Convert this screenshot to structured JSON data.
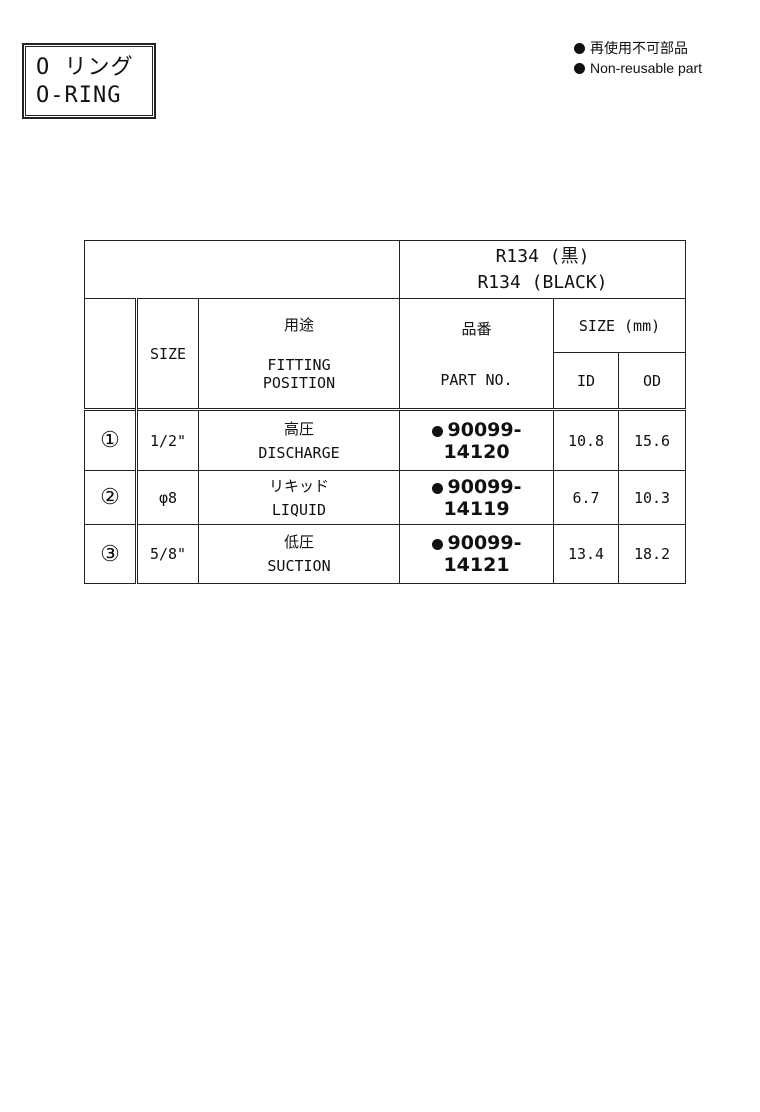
{
  "title": {
    "jp": "O リング",
    "en": "O-RING"
  },
  "legend": [
    {
      "icon": "filled-circle",
      "jp": "再使用不可部品"
    },
    {
      "icon": "filled-circle",
      "en": "Non-reusable part"
    }
  ],
  "table": {
    "group_header": {
      "jp": "R134 (黒)",
      "en": "R134 (BLACK)"
    },
    "headers": {
      "size": "SIZE",
      "fitting_jp": "用途",
      "fitting_en1": "FITTING",
      "fitting_en2": "POSITION",
      "part_jp": "品番",
      "part_en": "PART NO.",
      "size_mm": "SIZE (mm)",
      "id": "ID",
      "od": "OD"
    },
    "rows": [
      {
        "no": "①",
        "size": "1/2\"",
        "pos_jp": "高圧",
        "pos_en": "DISCHARGE",
        "part": "90099-14120",
        "id": "10.8",
        "od": "15.6"
      },
      {
        "no": "②",
        "size": "φ8",
        "pos_jp": "リキッド",
        "pos_en": "LIQUID",
        "part": "90099-14119",
        "id": "6.7",
        "od": "10.3"
      },
      {
        "no": "③",
        "size": "5/8\"",
        "pos_jp": "低圧",
        "pos_en": "SUCTION",
        "part": "90099-14121",
        "id": "13.4",
        "od": "18.2"
      }
    ]
  }
}
